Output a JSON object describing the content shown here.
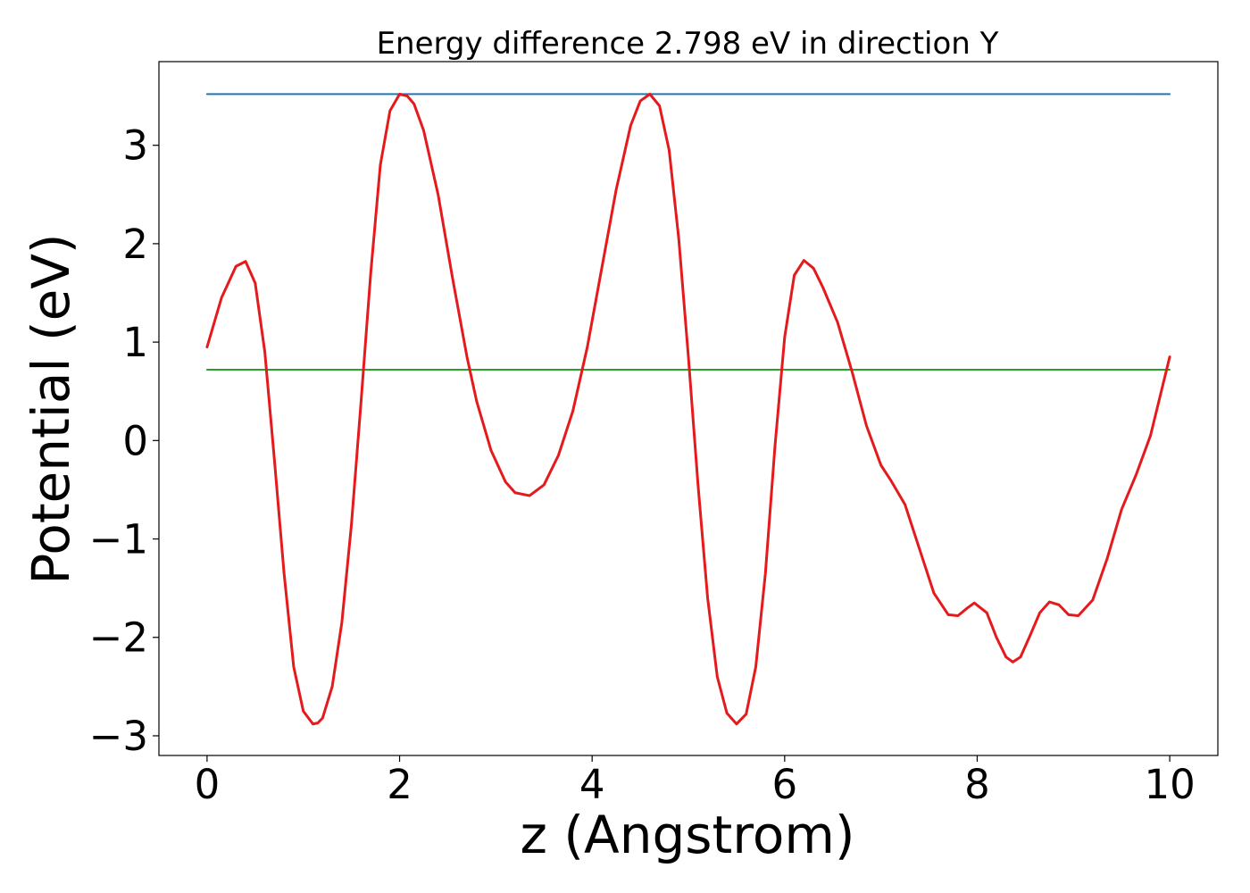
{
  "chart_data": {
    "type": "line",
    "title": "Energy difference 2.798 eV in direction Y",
    "xlabel": "z (Angstrom)",
    "ylabel": "Potential (eV)",
    "xlim": [
      -0.5,
      10.5
    ],
    "ylim": [
      -3.2,
      3.85
    ],
    "xticks": [
      0,
      2,
      4,
      6,
      8,
      10
    ],
    "xtick_labels": [
      "0",
      "2",
      "4",
      "6",
      "8",
      "10"
    ],
    "yticks": [
      -3,
      -2,
      -1,
      0,
      1,
      2,
      3
    ],
    "ytick_labels": [
      "−3",
      "−2",
      "−1",
      "0",
      "1",
      "2",
      "3"
    ],
    "grid": false,
    "legend": false,
    "series": [
      {
        "color": "#1f77b4",
        "x": [
          0,
          10
        ],
        "y": [
          3.52,
          3.52
        ]
      },
      {
        "color": "#2ca02c",
        "x": [
          0,
          10
        ],
        "y": [
          0.72,
          0.72
        ]
      },
      {
        "color": "#e41a1c",
        "x": [
          0,
          0.15,
          0.3,
          0.4,
          0.5,
          0.6,
          0.7,
          0.8,
          0.9,
          1.0,
          1.1,
          1.15,
          1.2,
          1.3,
          1.4,
          1.5,
          1.6,
          1.7,
          1.8,
          1.9,
          2.0,
          2.08,
          2.15,
          2.25,
          2.4,
          2.55,
          2.7,
          2.8,
          2.95,
          3.1,
          3.2,
          3.35,
          3.5,
          3.65,
          3.8,
          3.95,
          4.1,
          4.25,
          4.4,
          4.5,
          4.6,
          4.7,
          4.8,
          4.9,
          5.0,
          5.1,
          5.2,
          5.3,
          5.4,
          5.5,
          5.6,
          5.7,
          5.8,
          5.9,
          6.0,
          6.1,
          6.2,
          6.3,
          6.4,
          6.55,
          6.7,
          6.85,
          7.0,
          7.1,
          7.25,
          7.4,
          7.55,
          7.7,
          7.8,
          7.9,
          7.97,
          8.1,
          8.2,
          8.3,
          8.37,
          8.45,
          8.55,
          8.65,
          8.75,
          8.85,
          8.95,
          9.05,
          9.2,
          9.35,
          9.5,
          9.65,
          9.8,
          10.0
        ],
        "y": [
          0.95,
          1.45,
          1.77,
          1.82,
          1.6,
          0.9,
          -0.2,
          -1.35,
          -2.3,
          -2.75,
          -2.88,
          -2.87,
          -2.82,
          -2.5,
          -1.85,
          -0.85,
          0.4,
          1.7,
          2.8,
          3.35,
          3.52,
          3.5,
          3.42,
          3.15,
          2.5,
          1.65,
          0.85,
          0.4,
          -0.1,
          -0.42,
          -0.53,
          -0.56,
          -0.45,
          -0.15,
          0.3,
          0.95,
          1.75,
          2.55,
          3.2,
          3.45,
          3.52,
          3.4,
          2.95,
          2.05,
          0.85,
          -0.45,
          -1.6,
          -2.4,
          -2.77,
          -2.88,
          -2.78,
          -2.3,
          -1.35,
          -0.05,
          1.05,
          1.68,
          1.83,
          1.75,
          1.55,
          1.2,
          0.7,
          0.15,
          -0.25,
          -0.4,
          -0.65,
          -1.1,
          -1.55,
          -1.77,
          -1.78,
          -1.7,
          -1.65,
          -1.75,
          -2.0,
          -2.2,
          -2.25,
          -2.2,
          -1.98,
          -1.75,
          -1.64,
          -1.67,
          -1.77,
          -1.78,
          -1.62,
          -1.2,
          -0.7,
          -0.35,
          0.05,
          0.85
        ]
      }
    ]
  }
}
